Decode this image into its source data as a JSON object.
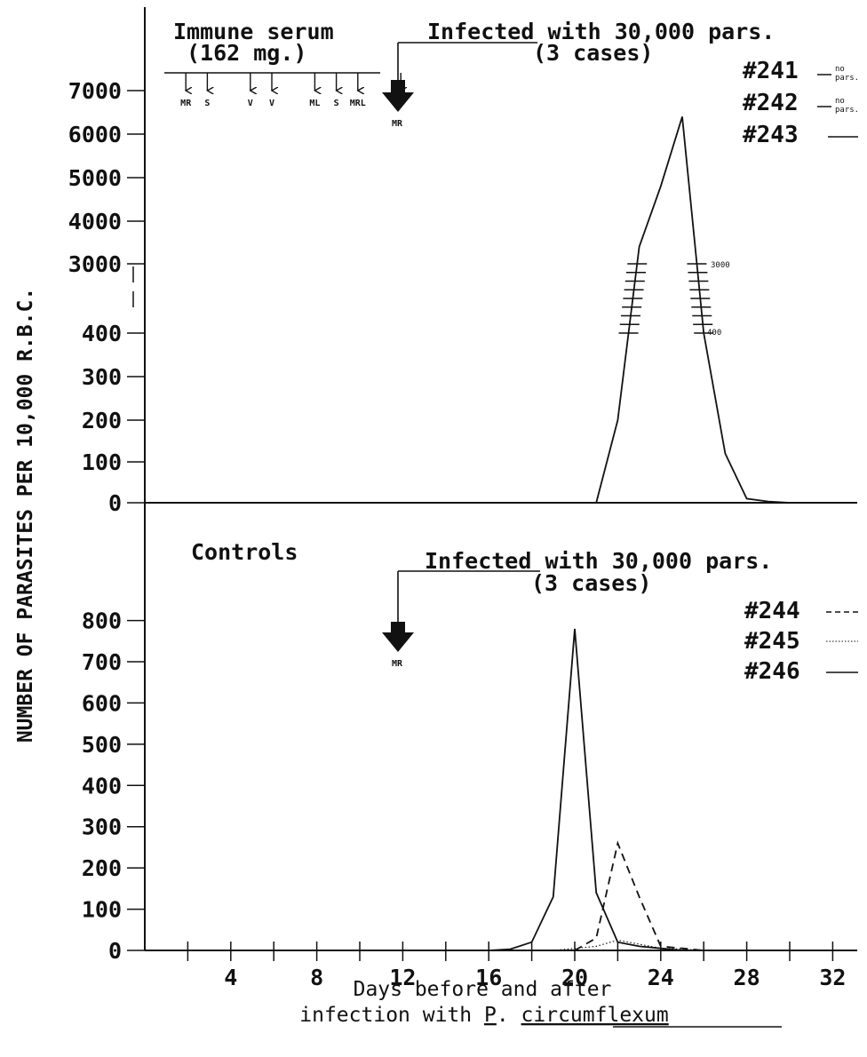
{
  "chart_data": [
    {
      "panel": "upper",
      "type": "line",
      "ylabel": "NUMBER OF PARASITES PER 10,000 R.B.C.",
      "yticks": [
        "7000",
        "6000",
        "5000",
        "4000",
        "3000",
        "400",
        "300",
        "200",
        "100",
        "0"
      ],
      "group_label": "Immune serum",
      "dose_label": "(162 mg.)",
      "injection_markers": [
        {
          "day": 1,
          "label": "MR"
        },
        {
          "day": 2,
          "label": "S"
        },
        {
          "day": 4,
          "label": "V"
        },
        {
          "day": 5,
          "label": "V"
        },
        {
          "day": 7,
          "label": "ML"
        },
        {
          "day": 8,
          "label": "S"
        },
        {
          "day": 9,
          "label": "MRL"
        },
        {
          "day": 11,
          "label": "V"
        }
      ],
      "infection": {
        "prefix": "Infected",
        "suffix": " with 30,000 pars.",
        "cases": "(3 cases)",
        "day": 12,
        "marker": "MR"
      },
      "legend": [
        {
          "name": "#241",
          "note1": "no",
          "note2": "pars."
        },
        {
          "name": "#242",
          "note1": "no",
          "note2": "pars."
        },
        {
          "name": "#243"
        }
      ],
      "break_labels": [
        "3000",
        "400"
      ],
      "series": [
        {
          "name": "#243",
          "style": "solid",
          "x": [
            21,
            22,
            23,
            24,
            25,
            26,
            27,
            28,
            29,
            30
          ],
          "y": [
            0,
            200,
            3400,
            4800,
            6400,
            400,
            120,
            10,
            3,
            0
          ]
        }
      ]
    },
    {
      "panel": "lower",
      "type": "line",
      "group_label": "Controls",
      "infection": {
        "prefix": "Infected",
        "suffix": " with 30,000 pars.",
        "cases": "(3 cases)",
        "day": 12,
        "marker": "MR"
      },
      "xlabel": [
        "Days before and after",
        "infection with "
      ],
      "xlabel_species": {
        "genus": "P",
        "dot": ". ",
        "species": "circumflexum"
      },
      "x": [
        4,
        8,
        12,
        16,
        20,
        24,
        28,
        32
      ],
      "xticks": [
        "4",
        "8",
        "12",
        "16",
        "20",
        "24",
        "28",
        "32"
      ],
      "yticks": [
        "800",
        "700",
        "600",
        "500",
        "400",
        "300",
        "200",
        "100",
        "0"
      ],
      "ylim": [
        0,
        800
      ],
      "legend": [
        {
          "name": "#244",
          "style": "dashed"
        },
        {
          "name": "#245",
          "style": "dotted"
        },
        {
          "name": "#246",
          "style": "solid"
        }
      ],
      "series": [
        {
          "name": "#244",
          "style": "dashed",
          "x": [
            20,
            21,
            22,
            23,
            24,
            25,
            26
          ],
          "y": [
            0,
            30,
            260,
            130,
            10,
            5,
            0
          ]
        },
        {
          "name": "#245",
          "style": "dotted",
          "x": [
            19,
            20,
            21,
            22,
            23,
            24,
            25,
            26
          ],
          "y": [
            0,
            5,
            10,
            25,
            15,
            5,
            3,
            0
          ]
        },
        {
          "name": "#246",
          "style": "solid",
          "x": [
            16,
            17,
            18,
            19,
            20,
            21,
            22,
            23,
            24,
            25
          ],
          "y": [
            0,
            3,
            20,
            130,
            780,
            140,
            20,
            10,
            5,
            0
          ]
        }
      ]
    }
  ]
}
